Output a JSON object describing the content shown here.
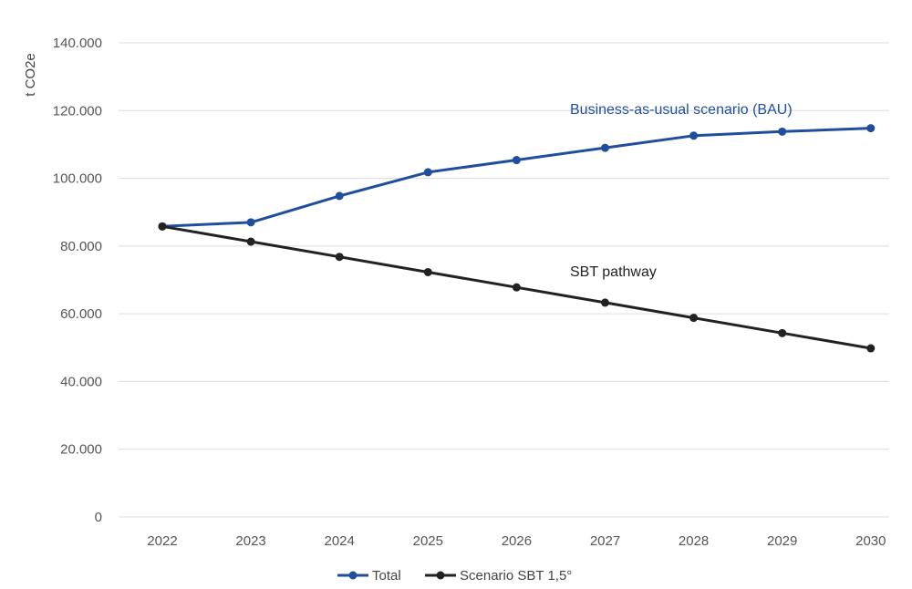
{
  "chart_data": {
    "type": "line",
    "ylabel": "t CO2e",
    "xlabel": "",
    "ylim": [
      0,
      140000
    ],
    "yticks": [
      0,
      20000,
      40000,
      60000,
      80000,
      100000,
      120000,
      140000
    ],
    "ytick_labels": [
      "0",
      "20.000",
      "40.000",
      "60.000",
      "80.000",
      "100.000",
      "120.000",
      "140.000"
    ],
    "categories": [
      "2022",
      "2023",
      "2024",
      "2025",
      "2026",
      "2027",
      "2028",
      "2029",
      "2030"
    ],
    "grid": "horizontal",
    "legend_position": "bottom-center",
    "series": [
      {
        "name": "Total",
        "color": "#1f4e9e",
        "values": [
          85800,
          87000,
          94800,
          101800,
          105400,
          109000,
          112600,
          113800,
          114800
        ]
      },
      {
        "name": "Scenario SBT 1,5°",
        "color": "#222222",
        "values": [
          85800,
          81300,
          76800,
          72300,
          67800,
          63300,
          58800,
          54300,
          49800
        ]
      }
    ],
    "annotations": [
      {
        "text": "Business-as-usual scenario (BAU)",
        "series": 0,
        "color": "#1f4e9e"
      },
      {
        "text": "SBT pathway",
        "series": 1,
        "color": "#222222"
      }
    ]
  }
}
